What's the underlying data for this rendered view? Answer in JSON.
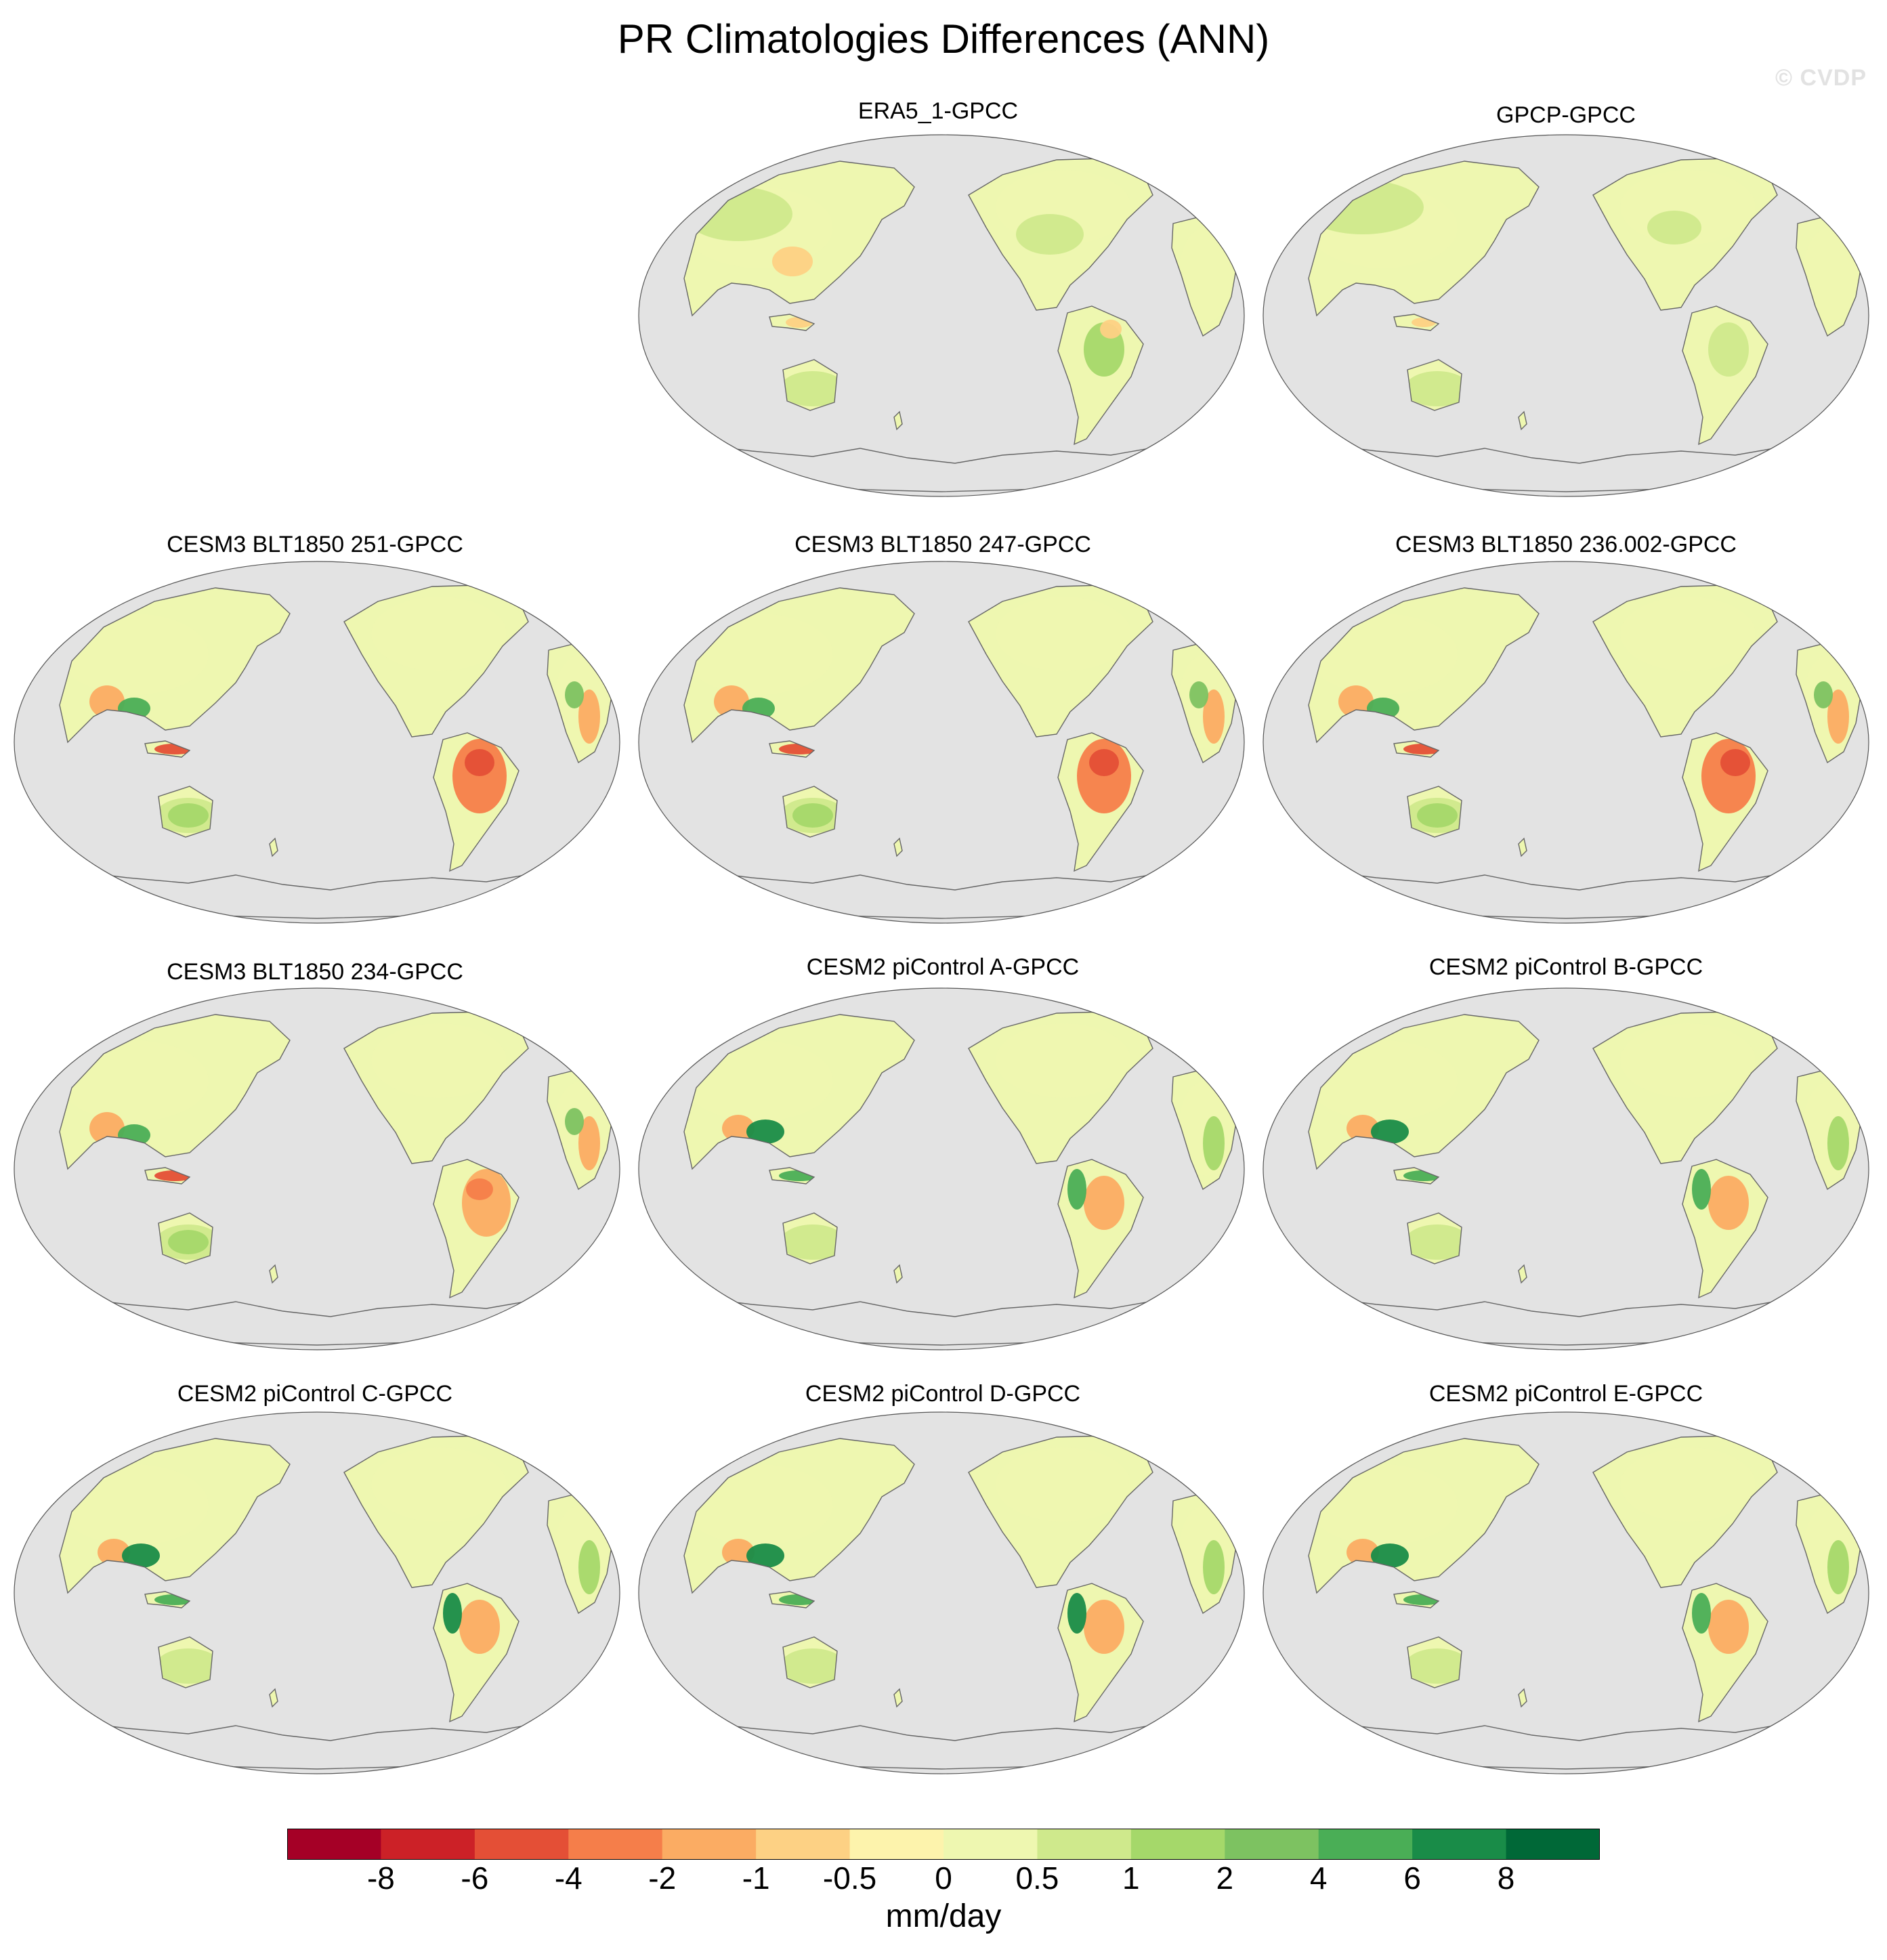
{
  "title": "PR Climatologies Differences (ANN)",
  "watermark": "© CVDP",
  "panels": [
    {
      "title": "ERA5_1-GPCC"
    },
    {
      "title": "GPCP-GPCC"
    },
    {
      "title": "CESM3 BLT1850 251-GPCC"
    },
    {
      "title": "CESM3 BLT1850 247-GPCC"
    },
    {
      "title": "CESM3 BLT1850 236.002-GPCC"
    },
    {
      "title": "CESM3 BLT1850 234-GPCC"
    },
    {
      "title": "CESM2 piControl A-GPCC"
    },
    {
      "title": "CESM2 piControl B-GPCC"
    },
    {
      "title": "CESM2 piControl C-GPCC"
    },
    {
      "title": "CESM2 piControl D-GPCC"
    },
    {
      "title": "CESM2 piControl E-GPCC"
    }
  ],
  "colorbar": {
    "labels": [
      "-8",
      "-6",
      "-4",
      "-2",
      "-1",
      "-0.5",
      "0",
      "0.5",
      "1",
      "2",
      "4",
      "6",
      "8"
    ],
    "colors": [
      "#a50026",
      "#cc2127",
      "#e44f36",
      "#f57e4a",
      "#fbac63",
      "#fdd184",
      "#fdf3ac",
      "#eef7b0",
      "#cfe98c",
      "#a5d86a",
      "#7dc261",
      "#4aae56",
      "#198c48",
      "#006837"
    ],
    "units": "mm/day"
  },
  "colors": {
    "ocean": "#e3e3e3",
    "border": "#555555",
    "coast": "#666666"
  }
}
